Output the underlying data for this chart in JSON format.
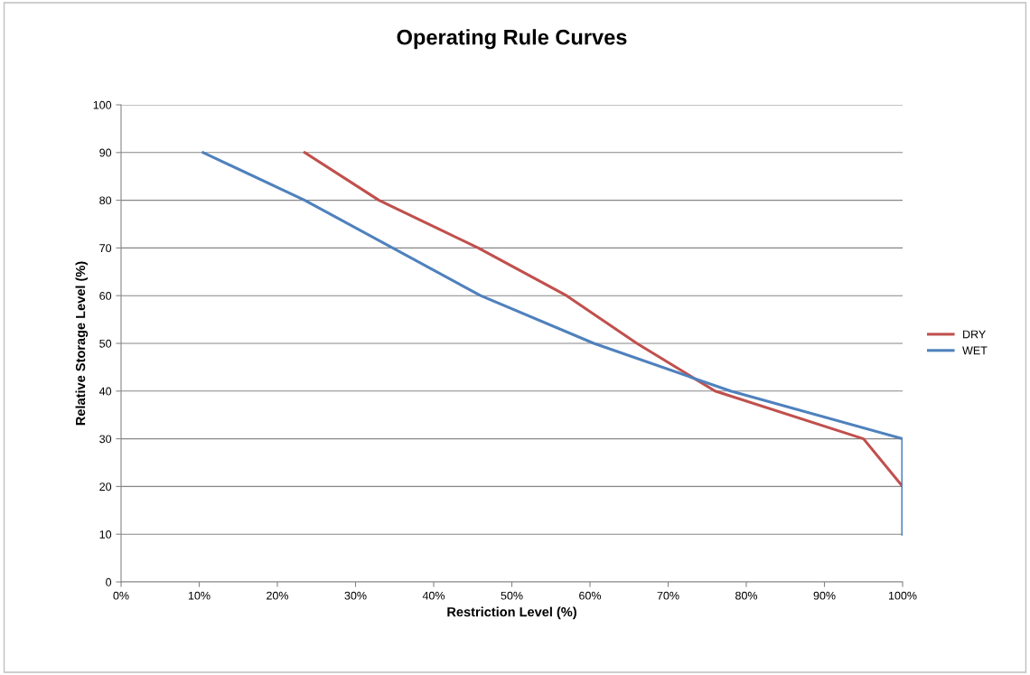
{
  "chart_data": {
    "type": "line",
    "title": "Operating Rule Curves",
    "xlabel": "Restriction Level (%)",
    "ylabel": "Relative Storage Level (%)",
    "series": [
      {
        "name": "DRY",
        "color": "#c0504d",
        "x": [
          23.5,
          33,
          45.7,
          57,
          66,
          76,
          95,
          100
        ],
        "values": [
          90,
          80,
          70,
          60,
          50,
          40,
          30,
          20
        ]
      },
      {
        "name": "WET",
        "color": "#4f81bd",
        "x": [
          10.5,
          23.5,
          46,
          60.5,
          78,
          100,
          100
        ],
        "values": [
          90,
          80,
          60,
          50,
          40,
          30,
          10
        ]
      }
    ],
    "xlim": [
      0,
      100
    ],
    "xticks": [
      {
        "value": 0,
        "label": "0%"
      },
      {
        "value": 10,
        "label": "10%"
      },
      {
        "value": 20,
        "label": "20%"
      },
      {
        "value": 30,
        "label": "30%"
      },
      {
        "value": 40,
        "label": "40%"
      },
      {
        "value": 50,
        "label": "50%"
      },
      {
        "value": 60,
        "label": "60%"
      },
      {
        "value": 70,
        "label": "70%"
      },
      {
        "value": 80,
        "label": "80%"
      },
      {
        "value": 90,
        "label": "90%"
      },
      {
        "value": 100,
        "label": "100%"
      }
    ],
    "ylim": [
      0,
      100
    ],
    "yticks": [
      0,
      10,
      20,
      30,
      40,
      50,
      60,
      70,
      80,
      90,
      100
    ],
    "grid": "y",
    "legend": "right",
    "marker": "none",
    "line_style": "solid"
  }
}
